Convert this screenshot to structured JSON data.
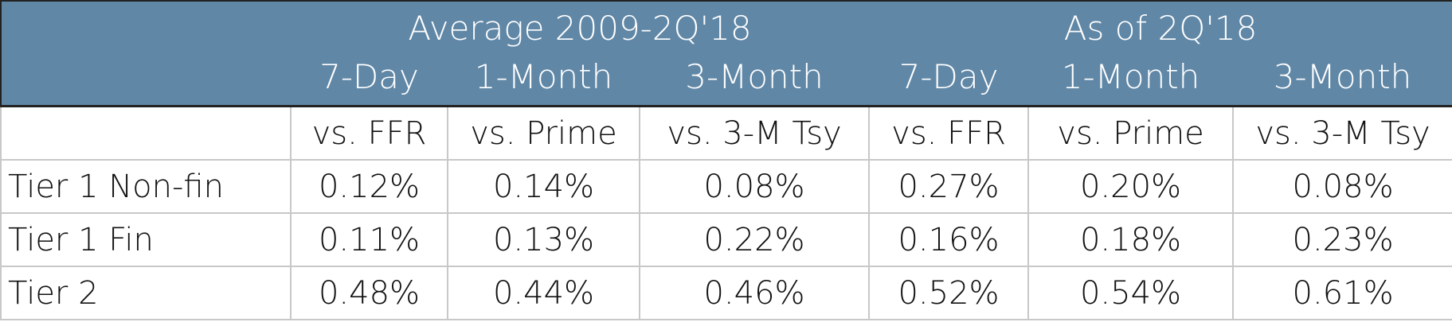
{
  "header": {
    "groups": [
      "Average 2009-2Q'18",
      "As of 2Q'18"
    ],
    "periods": [
      "7-Day",
      "1-Month",
      "3-Month",
      "7-Day",
      "1-Month",
      "3-Month"
    ]
  },
  "table": {
    "benchmarks": [
      "vs. FFR",
      "vs. Prime",
      "vs. 3-M Tsy",
      "vs. FFR",
      "vs. Prime",
      "vs. 3-M Tsy"
    ],
    "rows": [
      {
        "label": "Tier 1 Non-fin",
        "values": [
          "0.12%",
          "0.14%",
          "0.08%",
          "0.27%",
          "0.20%",
          "0.08%"
        ]
      },
      {
        "label": "Tier 1 Fin",
        "values": [
          "0.11%",
          "0.13%",
          "0.22%",
          "0.16%",
          "0.18%",
          "0.23%"
        ]
      },
      {
        "label": "Tier 2",
        "values": [
          "0.48%",
          "0.44%",
          "0.46%",
          "0.52%",
          "0.54%",
          "0.61%"
        ]
      }
    ]
  }
}
